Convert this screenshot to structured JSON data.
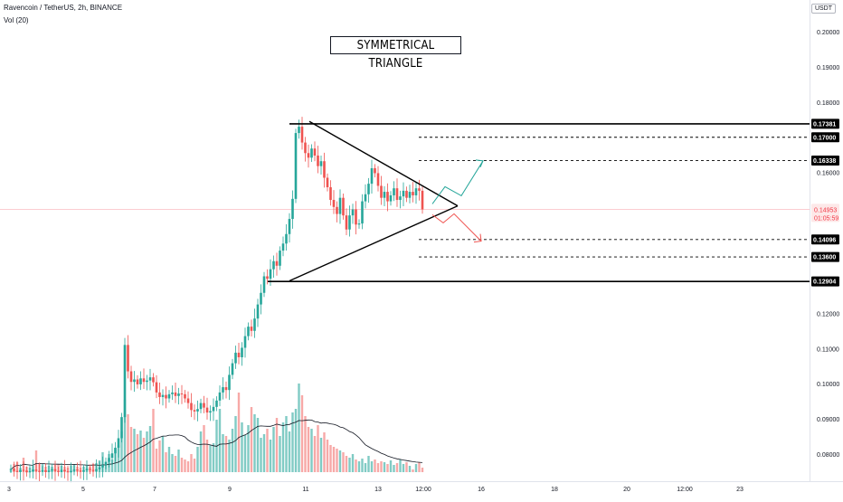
{
  "header": {
    "symbol_line": "Ravencoin / TetherUS, 2h, BINANCE",
    "volume_line": "Vol (20)",
    "quote_currency": "USDT"
  },
  "annotation": {
    "title": "SYMMETRICAL TRIANGLE"
  },
  "colors": {
    "up": "#26a69a",
    "down": "#ef5350",
    "vol_up": "#80cbc4",
    "vol_down": "#f7a9a7",
    "line": "#000000",
    "current_price": "#f23645",
    "arrow_up": "#26a69a",
    "arrow_down": "#ef5350"
  },
  "chart_data": {
    "type": "candlestick",
    "symbol": "RVN/USDT",
    "timeframe": "2h",
    "exchange": "BINANCE",
    "y_axis": {
      "scale": "linear",
      "range": [
        0.0725,
        0.2075
      ],
      "ticks": [
        "0.20000",
        "0.19000",
        "0.18000",
        "0.17000",
        "0.16000",
        "0.12000",
        "0.11000",
        "0.10000",
        "0.09000",
        "0.08000"
      ]
    },
    "x_axis": {
      "tick_labels": [
        "3",
        "5",
        "7",
        "9",
        "11",
        "13",
        "12:00",
        "16",
        "18",
        "20",
        "12:00",
        "23"
      ]
    },
    "current_price": {
      "label": "0.14953",
      "countdown": "01:05:59",
      "value": 0.14953
    },
    "horizontal_levels": [
      {
        "label": "0.17381",
        "value": 0.17381,
        "style": "solid"
      },
      {
        "label": "0.17000",
        "value": 0.17,
        "style": "dashed"
      },
      {
        "label": "0.16338",
        "value": 0.16338,
        "style": "dashed"
      },
      {
        "label": "0.14096",
        "value": 0.14096,
        "style": "dashed"
      },
      {
        "label": "0.13600",
        "value": 0.136,
        "style": "dashed"
      },
      {
        "label": "0.12904",
        "value": 0.12904,
        "style": "solid"
      }
    ],
    "triangle": {
      "apex_price": 0.1505,
      "upper_start_price": 0.1745,
      "lower_start_price": 0.1292
    },
    "projection_arrows": [
      {
        "direction": "up",
        "target_price": 0.1633
      },
      {
        "direction": "down",
        "target_price": 0.141
      }
    ],
    "volume_indicator": "Vol (20)",
    "candle_closes_estimated": [
      0.0758,
      0.0752,
      0.0749,
      0.0755,
      0.0753,
      0.0748,
      0.0751,
      0.0756,
      0.0752,
      0.075,
      0.0754,
      0.0749,
      0.0753,
      0.0757,
      0.0752,
      0.0749,
      0.0755,
      0.0751,
      0.0748,
      0.0752,
      0.0756,
      0.0753,
      0.075,
      0.0754,
      0.0758,
      0.0755,
      0.0752,
      0.0757,
      0.0762,
      0.0769,
      0.0778,
      0.0789,
      0.0802,
      0.0818,
      0.0845,
      0.0905,
      0.111,
      0.1035,
      0.1005,
      0.1012,
      0.0998,
      0.1015,
      0.1005,
      0.1009,
      0.1018,
      0.1004,
      0.0975,
      0.0962,
      0.0968,
      0.0958,
      0.097,
      0.0975,
      0.0965,
      0.0972,
      0.097,
      0.0958,
      0.0945,
      0.0925,
      0.0921,
      0.0928,
      0.0945,
      0.0932,
      0.0918,
      0.0922,
      0.0934,
      0.0952,
      0.0975,
      0.099,
      0.0982,
      0.1025,
      0.1058,
      0.1088,
      0.1075,
      0.1102,
      0.1135,
      0.1162,
      0.115,
      0.1185,
      0.1225,
      0.1258,
      0.1305,
      0.1298,
      0.1325,
      0.1348,
      0.1335,
      0.1378,
      0.1398,
      0.1425,
      0.1468,
      0.1525,
      0.1712,
      0.173,
      0.1685,
      0.1655,
      0.1642,
      0.1668,
      0.1648,
      0.1618,
      0.1632,
      0.1585,
      0.1558,
      0.1522,
      0.1502,
      0.1482,
      0.1528,
      0.1478,
      0.1438,
      0.1478,
      0.1495,
      0.1452,
      0.1455,
      0.1518,
      0.1538,
      0.1568,
      0.1612,
      0.1598,
      0.1562,
      0.1528,
      0.1545,
      0.1518,
      0.1535,
      0.1555,
      0.1522,
      0.1532,
      0.1548,
      0.1528,
      0.1545,
      0.1535,
      0.1555,
      0.1548,
      0.1495
    ]
  }
}
